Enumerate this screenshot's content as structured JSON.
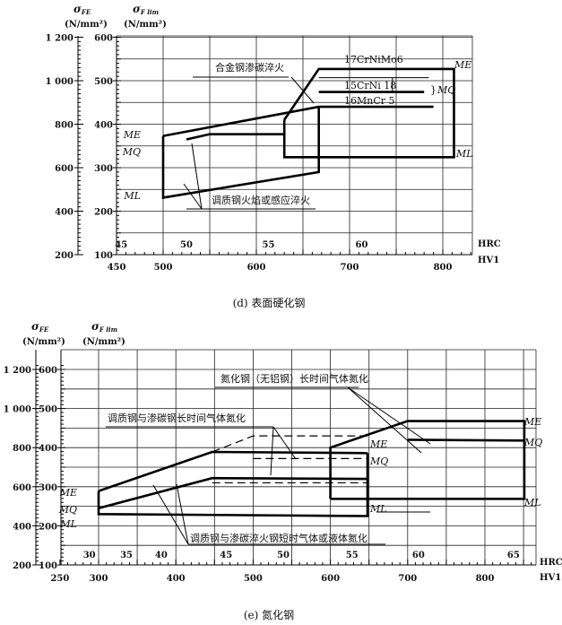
{
  "chart_data": [
    {
      "type": "line",
      "caption": "(d) 表面硬化钢",
      "y_outer": {
        "symbol": "σ",
        "sub": "FE",
        "unit": "(N/mm²)",
        "ticks": [
          "200",
          "400",
          "600",
          "800",
          "1 000",
          "1 200"
        ],
        "values": [
          200,
          400,
          600,
          800,
          1000,
          1200
        ]
      },
      "y": {
        "symbol": "σ",
        "sub": "F lim",
        "unit": "(N/mm²)",
        "ticks": [
          100,
          200,
          300,
          400,
          500,
          600
        ],
        "ylim": [
          100,
          600
        ]
      },
      "x": {
        "label": "HV1",
        "ticks": [
          450,
          500,
          600,
          700,
          800
        ],
        "xlim": [
          450,
          830
        ]
      },
      "x2": {
        "label": "HRC",
        "ticks": [
          "45",
          "50",
          "55",
          "60"
        ],
        "hv": [
          455,
          525,
          613,
          713
        ]
      },
      "grid": true,
      "series": [
        {
          "style": "thick",
          "points": [
            [
              630,
              410
            ],
            [
              667,
              527
            ],
            [
              812,
              527
            ],
            [
              812,
              324
            ],
            [
              630,
              324
            ],
            [
              630,
              410
            ]
          ]
        },
        {
          "style": "thick",
          "points": [
            [
              500,
              373
            ],
            [
              667,
              440
            ],
            [
              790,
              440
            ]
          ]
        },
        {
          "style": "thick",
          "points": [
            [
              525,
              365
            ],
            [
              550,
              377
            ],
            [
              630,
              377
            ]
          ]
        },
        {
          "style": "thick",
          "points": [
            [
              500,
              373
            ],
            [
              500,
              231
            ],
            [
              667,
              290
            ],
            [
              667,
              440
            ]
          ]
        },
        {
          "style": "thick",
          "points": [
            [
              667,
              474
            ],
            [
              780,
              474
            ]
          ]
        },
        {
          "style": "thin",
          "points": [
            [
              667,
              507
            ],
            [
              785,
              507
            ]
          ]
        },
        {
          "style": "thin",
          "points": [
            [
              746,
              474
            ],
            [
              746,
              507
            ]
          ]
        }
      ],
      "labels": [
        "ME",
        "MQ",
        "ML",
        "ME",
        "MQ",
        "ML"
      ],
      "annotations": [
        "合金钢渗碳淬火",
        "17CrNiMo6",
        "15CrNi 18",
        "16MnCr 5",
        "调质钢火焰或感应淬火"
      ]
    },
    {
      "type": "line",
      "caption": "(e) 氮化钢",
      "y_outer": {
        "symbol": "σ",
        "sub": "FE",
        "unit": "(N/mm²)",
        "ticks": [
          "200",
          "400",
          "600",
          "800",
          "1 000",
          "1 200"
        ],
        "values": [
          200,
          400,
          600,
          800,
          1000,
          1200
        ]
      },
      "y": {
        "symbol": "σ",
        "sub": "F lim",
        "unit": "(N/mm²)",
        "ticks": [
          100,
          200,
          300,
          400,
          500,
          600
        ],
        "ylim": [
          100,
          650
        ]
      },
      "x": {
        "label": "HV1",
        "ticks": [
          250,
          300,
          400,
          500,
          600,
          700,
          800
        ],
        "xlim": [
          250,
          865
        ]
      },
      "x2": {
        "label": "HRC",
        "ticks": [
          "30",
          "35",
          "40",
          "45",
          "50",
          "55",
          "60",
          "65"
        ],
        "hv": [
          288,
          336,
          381,
          465,
          539,
          628,
          714,
          837
        ]
      },
      "grid": true,
      "series": [
        {
          "style": "thick",
          "points": [
            [
              300,
              289
            ],
            [
              447,
              389
            ],
            [
              648,
              386
            ]
          ]
        },
        {
          "style": "thick",
          "points": [
            [
              300,
              245
            ],
            [
              447,
              322
            ],
            [
              648,
              320
            ]
          ]
        },
        {
          "style": "thick",
          "points": [
            [
              300,
              289
            ],
            [
              300,
              230
            ],
            [
              648,
              225
            ],
            [
              648,
              386
            ]
          ]
        },
        {
          "style": "dash",
          "points": [
            [
              447,
              389
            ],
            [
              500,
              430
            ],
            [
              648,
              430
            ]
          ]
        },
        {
          "style": "dash",
          "points": [
            [
              500,
              372
            ],
            [
              648,
              372
            ]
          ]
        },
        {
          "style": "dash",
          "points": [
            [
              447,
              310
            ],
            [
              648,
              310
            ]
          ]
        },
        {
          "style": "thick",
          "points": [
            [
              600,
              269
            ],
            [
              600,
              400
            ],
            [
              700,
              468
            ],
            [
              851,
              468
            ],
            [
              851,
              269
            ],
            [
              600,
              269
            ]
          ]
        },
        {
          "style": "thick",
          "points": [
            [
              700,
              420
            ],
            [
              851,
              418
            ]
          ]
        }
      ],
      "labels": [
        "ME",
        "MQ",
        "ML",
        "ME",
        "MQ",
        "ML",
        "ME",
        "MQ",
        "ML"
      ],
      "annotations": [
        "氮化钢（无铝钢）长时间气体氮化",
        "调质钢与渗碳钢长时间气体氮化",
        "调质钢与渗碳淬火钢短时气体或液体氮化"
      ]
    }
  ]
}
